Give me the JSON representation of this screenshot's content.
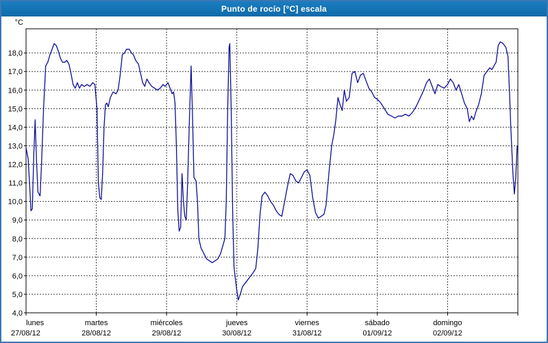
{
  "window": {
    "title": "Punto de rocío [°C] escala"
  },
  "colors": {
    "title_bar": "#1271b4",
    "title_text": "#ffffff",
    "window_border": "#3a77b5",
    "plot_background": "#ffffff",
    "grid": "#3c3c3c",
    "axis": "#000000",
    "line": "#0d0d96"
  },
  "chart_data": {
    "type": "line",
    "title": "Punto de rocío [°C] escala",
    "y_unit_label": "°C",
    "ylim": [
      4,
      19.3
    ],
    "y_ticks": [
      4,
      5,
      6,
      7,
      8,
      9,
      10,
      11,
      12,
      13,
      14,
      15,
      16,
      17,
      18
    ],
    "y_tick_labels": [
      "4,0",
      "5,0",
      "6,0",
      "7,0",
      "8,0",
      "9,0",
      "10,0",
      "11,0",
      "12,0",
      "13,0",
      "14,0",
      "15,0",
      "16,0",
      "17,0",
      "18,0"
    ],
    "grid": true,
    "legend": "none",
    "x_categories": [
      {
        "name": "lunes",
        "date": "27/08/12"
      },
      {
        "name": "martes",
        "date": "28/08/12"
      },
      {
        "name": "miércoles",
        "date": "29/08/12"
      },
      {
        "name": "jueves",
        "date": "30/08/12"
      },
      {
        "name": "viernes",
        "date": "31/08/12"
      },
      {
        "name": "sábado",
        "date": "01/09/12"
      },
      {
        "name": "domingo",
        "date": "02/09/12"
      }
    ],
    "x_range_days": [
      0,
      7
    ],
    "series": [
      {
        "name": "Punto de rocío",
        "points": [
          [
            0,
            12.9
          ],
          [
            0.03,
            12.3
          ],
          [
            0.05,
            11.0
          ],
          [
            0.07,
            9.5
          ],
          [
            0.09,
            9.6
          ],
          [
            0.11,
            12.5
          ],
          [
            0.13,
            14.4
          ],
          [
            0.15,
            12.1
          ],
          [
            0.17,
            10.5
          ],
          [
            0.2,
            10.3
          ],
          [
            0.22,
            12.0
          ],
          [
            0.25,
            15.0
          ],
          [
            0.28,
            17.3
          ],
          [
            0.31,
            17.5
          ],
          [
            0.34,
            17.9
          ],
          [
            0.37,
            18.2
          ],
          [
            0.4,
            18.5
          ],
          [
            0.43,
            18.4
          ],
          [
            0.46,
            18.1
          ],
          [
            0.49,
            17.7
          ],
          [
            0.52,
            17.5
          ],
          [
            0.55,
            17.5
          ],
          [
            0.58,
            17.6
          ],
          [
            0.61,
            17.4
          ],
          [
            0.64,
            16.9
          ],
          [
            0.67,
            16.3
          ],
          [
            0.7,
            16.1
          ],
          [
            0.73,
            16.4
          ],
          [
            0.76,
            16.1
          ],
          [
            0.79,
            16.3
          ],
          [
            0.83,
            16.2
          ],
          [
            0.87,
            16.3
          ],
          [
            0.91,
            16.2
          ],
          [
            0.95,
            16.4
          ],
          [
            0.98,
            16.3
          ],
          [
            1.01,
            15.0
          ],
          [
            1.03,
            11.0
          ],
          [
            1.05,
            10.2
          ],
          [
            1.07,
            10.1
          ],
          [
            1.09,
            11.5
          ],
          [
            1.11,
            14.0
          ],
          [
            1.13,
            15.2
          ],
          [
            1.15,
            15.3
          ],
          [
            1.17,
            15.1
          ],
          [
            1.2,
            15.6
          ],
          [
            1.24,
            15.9
          ],
          [
            1.28,
            15.8
          ],
          [
            1.31,
            16.0
          ],
          [
            1.34,
            16.8
          ],
          [
            1.37,
            17.9
          ],
          [
            1.4,
            18.0
          ],
          [
            1.43,
            18.2
          ],
          [
            1.47,
            18.2
          ],
          [
            1.5,
            18.0
          ],
          [
            1.53,
            17.9
          ],
          [
            1.56,
            17.6
          ],
          [
            1.6,
            17.4
          ],
          [
            1.63,
            16.9
          ],
          [
            1.66,
            16.4
          ],
          [
            1.69,
            16.2
          ],
          [
            1.72,
            16.6
          ],
          [
            1.75,
            16.4
          ],
          [
            1.79,
            16.2
          ],
          [
            1.83,
            16.1
          ],
          [
            1.87,
            16.0
          ],
          [
            1.91,
            16.1
          ],
          [
            1.95,
            16.3
          ],
          [
            1.98,
            16.2
          ],
          [
            2.02,
            16.4
          ],
          [
            2.05,
            16.1
          ],
          [
            2.08,
            15.8
          ],
          [
            2.1,
            15.9
          ],
          [
            2.12,
            15.3
          ],
          [
            2.14,
            13.0
          ],
          [
            2.16,
            9.5
          ],
          [
            2.18,
            8.4
          ],
          [
            2.2,
            8.6
          ],
          [
            2.22,
            11.5
          ],
          [
            2.24,
            10.0
          ],
          [
            2.26,
            9.2
          ],
          [
            2.28,
            9.0
          ],
          [
            2.3,
            11.0
          ],
          [
            2.33,
            15.0
          ],
          [
            2.35,
            17.3
          ],
          [
            2.37,
            14.5
          ],
          [
            2.39,
            11.3
          ],
          [
            2.42,
            11.1
          ],
          [
            2.44,
            10.0
          ],
          [
            2.46,
            8.0
          ],
          [
            2.49,
            7.5
          ],
          [
            2.53,
            7.2
          ],
          [
            2.57,
            6.9
          ],
          [
            2.61,
            6.8
          ],
          [
            2.65,
            6.7
          ],
          [
            2.69,
            6.8
          ],
          [
            2.73,
            6.9
          ],
          [
            2.77,
            7.2
          ],
          [
            2.8,
            7.6
          ],
          [
            2.83,
            8.0
          ],
          [
            2.85,
            10.0
          ],
          [
            2.87,
            15.0
          ],
          [
            2.89,
            18.3
          ],
          [
            2.9,
            18.5
          ],
          [
            2.92,
            15.0
          ],
          [
            2.94,
            9.5
          ],
          [
            2.96,
            6.5
          ],
          [
            2.98,
            5.8
          ],
          [
            3.0,
            5.2
          ],
          [
            3.02,
            4.7
          ],
          [
            3.05,
            5.0
          ],
          [
            3.08,
            5.4
          ],
          [
            3.12,
            5.6
          ],
          [
            3.16,
            5.8
          ],
          [
            3.2,
            6.0
          ],
          [
            3.24,
            6.2
          ],
          [
            3.27,
            6.4
          ],
          [
            3.3,
            7.5
          ],
          [
            3.33,
            9.3
          ],
          [
            3.36,
            10.3
          ],
          [
            3.4,
            10.5
          ],
          [
            3.44,
            10.3
          ],
          [
            3.48,
            10.0
          ],
          [
            3.52,
            9.8
          ],
          [
            3.56,
            9.5
          ],
          [
            3.6,
            9.3
          ],
          [
            3.64,
            9.2
          ],
          [
            3.68,
            10.0
          ],
          [
            3.72,
            10.8
          ],
          [
            3.76,
            11.5
          ],
          [
            3.8,
            11.4
          ],
          [
            3.84,
            11.1
          ],
          [
            3.88,
            11.0
          ],
          [
            3.92,
            11.3
          ],
          [
            3.96,
            11.6
          ],
          [
            4.0,
            11.7
          ],
          [
            4.04,
            11.4
          ],
          [
            4.08,
            10.2
          ],
          [
            4.12,
            9.4
          ],
          [
            4.16,
            9.1
          ],
          [
            4.2,
            9.2
          ],
          [
            4.24,
            9.3
          ],
          [
            4.27,
            9.8
          ],
          [
            4.31,
            11.5
          ],
          [
            4.35,
            13.0
          ],
          [
            4.38,
            13.6
          ],
          [
            4.41,
            14.4
          ],
          [
            4.44,
            15.6
          ],
          [
            4.47,
            15.2
          ],
          [
            4.5,
            14.9
          ],
          [
            4.53,
            16.0
          ],
          [
            4.56,
            15.4
          ],
          [
            4.6,
            15.6
          ],
          [
            4.64,
            16.9
          ],
          [
            4.68,
            17.0
          ],
          [
            4.72,
            16.4
          ],
          [
            4.76,
            16.8
          ],
          [
            4.8,
            16.9
          ],
          [
            4.84,
            16.5
          ],
          [
            4.88,
            16.1
          ],
          [
            4.92,
            15.9
          ],
          [
            4.96,
            15.6
          ],
          [
            5.0,
            15.5
          ],
          [
            5.05,
            15.3
          ],
          [
            5.1,
            15.0
          ],
          [
            5.15,
            14.7
          ],
          [
            5.2,
            14.6
          ],
          [
            5.25,
            14.5
          ],
          [
            5.3,
            14.6
          ],
          [
            5.35,
            14.6
          ],
          [
            5.4,
            14.7
          ],
          [
            5.45,
            14.6
          ],
          [
            5.5,
            14.8
          ],
          [
            5.55,
            15.1
          ],
          [
            5.6,
            15.5
          ],
          [
            5.65,
            15.9
          ],
          [
            5.7,
            16.4
          ],
          [
            5.74,
            16.6
          ],
          [
            5.78,
            16.2
          ],
          [
            5.82,
            15.8
          ],
          [
            5.86,
            16.3
          ],
          [
            5.9,
            16.2
          ],
          [
            5.95,
            16.1
          ],
          [
            6.0,
            16.3
          ],
          [
            6.04,
            16.6
          ],
          [
            6.08,
            16.4
          ],
          [
            6.12,
            16.0
          ],
          [
            6.16,
            16.3
          ],
          [
            6.2,
            15.8
          ],
          [
            6.24,
            15.3
          ],
          [
            6.28,
            15.0
          ],
          [
            6.31,
            14.3
          ],
          [
            6.34,
            14.6
          ],
          [
            6.37,
            14.4
          ],
          [
            6.4,
            14.8
          ],
          [
            6.44,
            15.2
          ],
          [
            6.48,
            15.8
          ],
          [
            6.52,
            16.8
          ],
          [
            6.56,
            17.0
          ],
          [
            6.6,
            17.2
          ],
          [
            6.63,
            17.1
          ],
          [
            6.66,
            17.3
          ],
          [
            6.69,
            17.5
          ],
          [
            6.72,
            18.4
          ],
          [
            6.75,
            18.6
          ],
          [
            6.79,
            18.5
          ],
          [
            6.83,
            18.3
          ],
          [
            6.86,
            17.8
          ],
          [
            6.88,
            16.0
          ],
          [
            6.9,
            14.0
          ],
          [
            6.93,
            11.5
          ],
          [
            6.95,
            10.4
          ],
          [
            6.97,
            11.3
          ],
          [
            6.99,
            13.0
          ]
        ]
      }
    ]
  }
}
